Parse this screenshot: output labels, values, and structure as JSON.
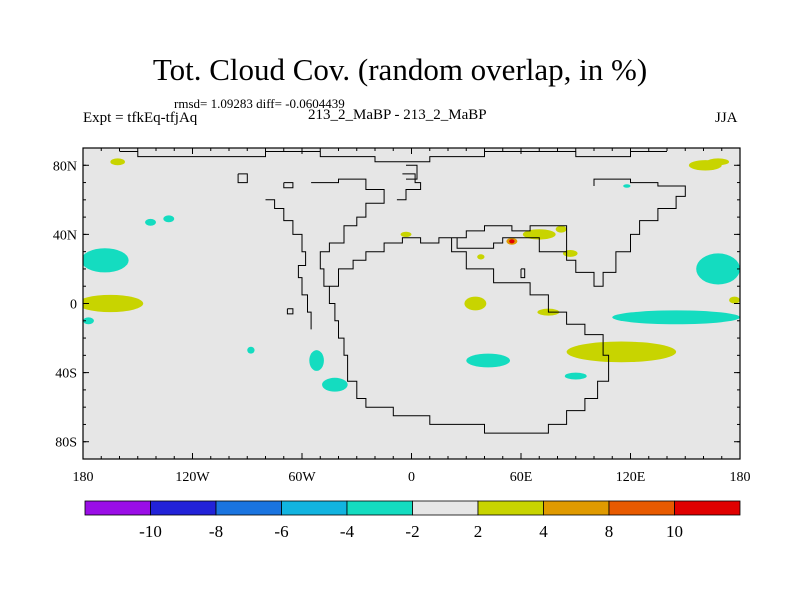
{
  "title": "Tot. Cloud Cov. (random overlap, in %)",
  "stats_text": "rmsd= 1.09283 diff= -0.0604439",
  "left_label": "Expt = tfkEq-tfjAq",
  "center_label": "213_2_MaBP - 213_2_MaBP",
  "right_label": "JJA",
  "chart_data": {
    "type": "heatmap",
    "x_ticks": [
      "180",
      "120W",
      "60W",
      "0",
      "60E",
      "120E",
      "180"
    ],
    "y_ticks": [
      "80N",
      "40N",
      "0",
      "40S",
      "80S"
    ],
    "xlim": [
      -180,
      180
    ],
    "ylim": [
      -90,
      90
    ],
    "colorbar": {
      "labels": [
        "-10",
        "-8",
        "-6",
        "-4",
        "-2",
        "2",
        "4",
        "8",
        "10"
      ],
      "colors": [
        "#9a0ee6",
        "#2222d8",
        "#1a74e0",
        "#12b4e0",
        "#14dcc0",
        "#e6e6e6",
        "#c8d400",
        "#e09a00",
        "#e85a00",
        "#e00000"
      ]
    },
    "background_color": "#e6e6e6",
    "anomaly_regions": [
      {
        "lon": -161,
        "lat": 82,
        "rx": 4,
        "ry": 2,
        "level": "2 to 4"
      },
      {
        "lon": 161,
        "lat": 80,
        "rx": 9,
        "ry": 3,
        "level": "2 to 4"
      },
      {
        "lon": 168,
        "lat": 82,
        "rx": 6,
        "ry": 2,
        "level": "2 to 4"
      },
      {
        "lon": -143,
        "lat": 47,
        "rx": 3,
        "ry": 2,
        "level": "-4 to -2"
      },
      {
        "lon": -133,
        "lat": 49,
        "rx": 3,
        "ry": 2,
        "level": "-4 to -2"
      },
      {
        "lon": -168,
        "lat": 25,
        "rx": 13,
        "ry": 7,
        "level": "-4 to -2"
      },
      {
        "lon": -165,
        "lat": 0,
        "rx": 18,
        "ry": 5,
        "level": "2 to 4"
      },
      {
        "lon": -177,
        "lat": -10,
        "rx": 3,
        "ry": 2,
        "level": "-4 to -2"
      },
      {
        "lon": -88,
        "lat": -27,
        "rx": 2,
        "ry": 2,
        "level": "-4 to -2"
      },
      {
        "lon": -52,
        "lat": -33,
        "rx": 4,
        "ry": 6,
        "level": "-4 to -2"
      },
      {
        "lon": -42,
        "lat": -47,
        "rx": 7,
        "ry": 4,
        "level": "-4 to -2"
      },
      {
        "lon": -3,
        "lat": 40,
        "rx": 3,
        "ry": 1.5,
        "level": "2 to 4"
      },
      {
        "lon": 35,
        "lat": 0,
        "rx": 6,
        "ry": 4,
        "level": "2 to 4"
      },
      {
        "lon": 38,
        "lat": 27,
        "rx": 2,
        "ry": 1.5,
        "level": "2 to 4"
      },
      {
        "lon": 55,
        "lat": 36,
        "rx": 3,
        "ry": 2,
        "level": "4 to 8"
      },
      {
        "lon": 55,
        "lat": 36,
        "rx": 1.5,
        "ry": 1.2,
        "level": "8 to 10"
      },
      {
        "lon": 70,
        "lat": 40,
        "rx": 9,
        "ry": 3,
        "level": "2 to 4"
      },
      {
        "lon": 82,
        "lat": 43,
        "rx": 3,
        "ry": 2,
        "level": "2 to 4"
      },
      {
        "lon": 87,
        "lat": 29,
        "rx": 4,
        "ry": 2,
        "level": "2 to 4"
      },
      {
        "lon": 75,
        "lat": -5,
        "rx": 6,
        "ry": 2,
        "level": "2 to 4"
      },
      {
        "lon": 115,
        "lat": -28,
        "rx": 30,
        "ry": 6,
        "level": "2 to 4"
      },
      {
        "lon": 145,
        "lat": -8,
        "rx": 35,
        "ry": 4,
        "level": "-4 to -2"
      },
      {
        "lon": 168,
        "lat": 20,
        "rx": 12,
        "ry": 9,
        "level": "-4 to -2"
      },
      {
        "lon": 177,
        "lat": 2,
        "rx": 3,
        "ry": 2,
        "level": "2 to 4"
      },
      {
        "lon": 42,
        "lat": -33,
        "rx": 12,
        "ry": 4,
        "level": "-4 to -2"
      },
      {
        "lon": 90,
        "lat": -42,
        "rx": 6,
        "ry": 2,
        "level": "-4 to -2"
      },
      {
        "lon": 118,
        "lat": 68,
        "rx": 2,
        "ry": 1,
        "level": "-4 to -2"
      }
    ]
  }
}
